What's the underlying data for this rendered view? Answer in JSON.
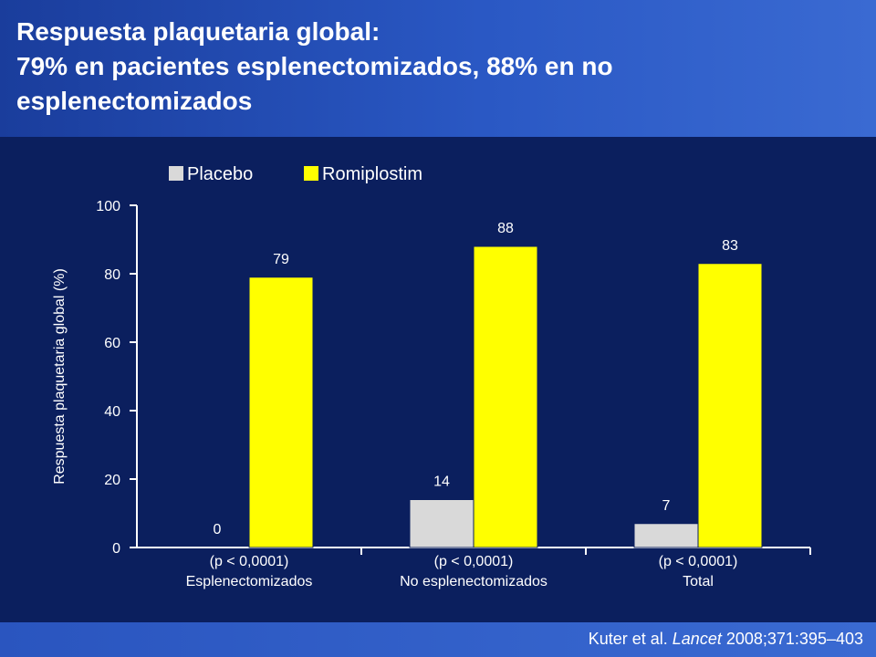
{
  "header": {
    "title_lines": [
      "Respuesta plaquetaria global:",
      "79% en pacientes esplenectomizados, 88% en no",
      "esplenectomizados"
    ]
  },
  "footer": {
    "citation_authors": "Kuter et al.",
    "citation_journal": "Lancet",
    "citation_details": "2008;371:395–403"
  },
  "chart_data": {
    "type": "bar",
    "categories": [
      "Esplenectomizados",
      "No esplenectomizados",
      "Total"
    ],
    "category_pvalues": [
      "(p < 0,0001)",
      "(p < 0,0001)",
      "(p < 0,0001)"
    ],
    "series": [
      {
        "name": "Placebo",
        "values": [
          0,
          14,
          7
        ],
        "data_labels": [
          "0",
          "14",
          "7"
        ],
        "color": "#d9d9d9"
      },
      {
        "name": "Romiplostim",
        "values": [
          79,
          88,
          83
        ],
        "data_labels": [
          "79",
          "88",
          "83"
        ],
        "color": "#ffff00"
      }
    ],
    "ylabel": "Respuesta plaquetaria global (%)",
    "xlabel": "",
    "ylim": [
      0,
      100
    ],
    "yticks": [
      0,
      20,
      40,
      60,
      80,
      100
    ],
    "ytick_labels": [
      "0",
      "20",
      "40",
      "60",
      "80",
      "100"
    ],
    "grid": false,
    "legend_position": "top-left"
  }
}
